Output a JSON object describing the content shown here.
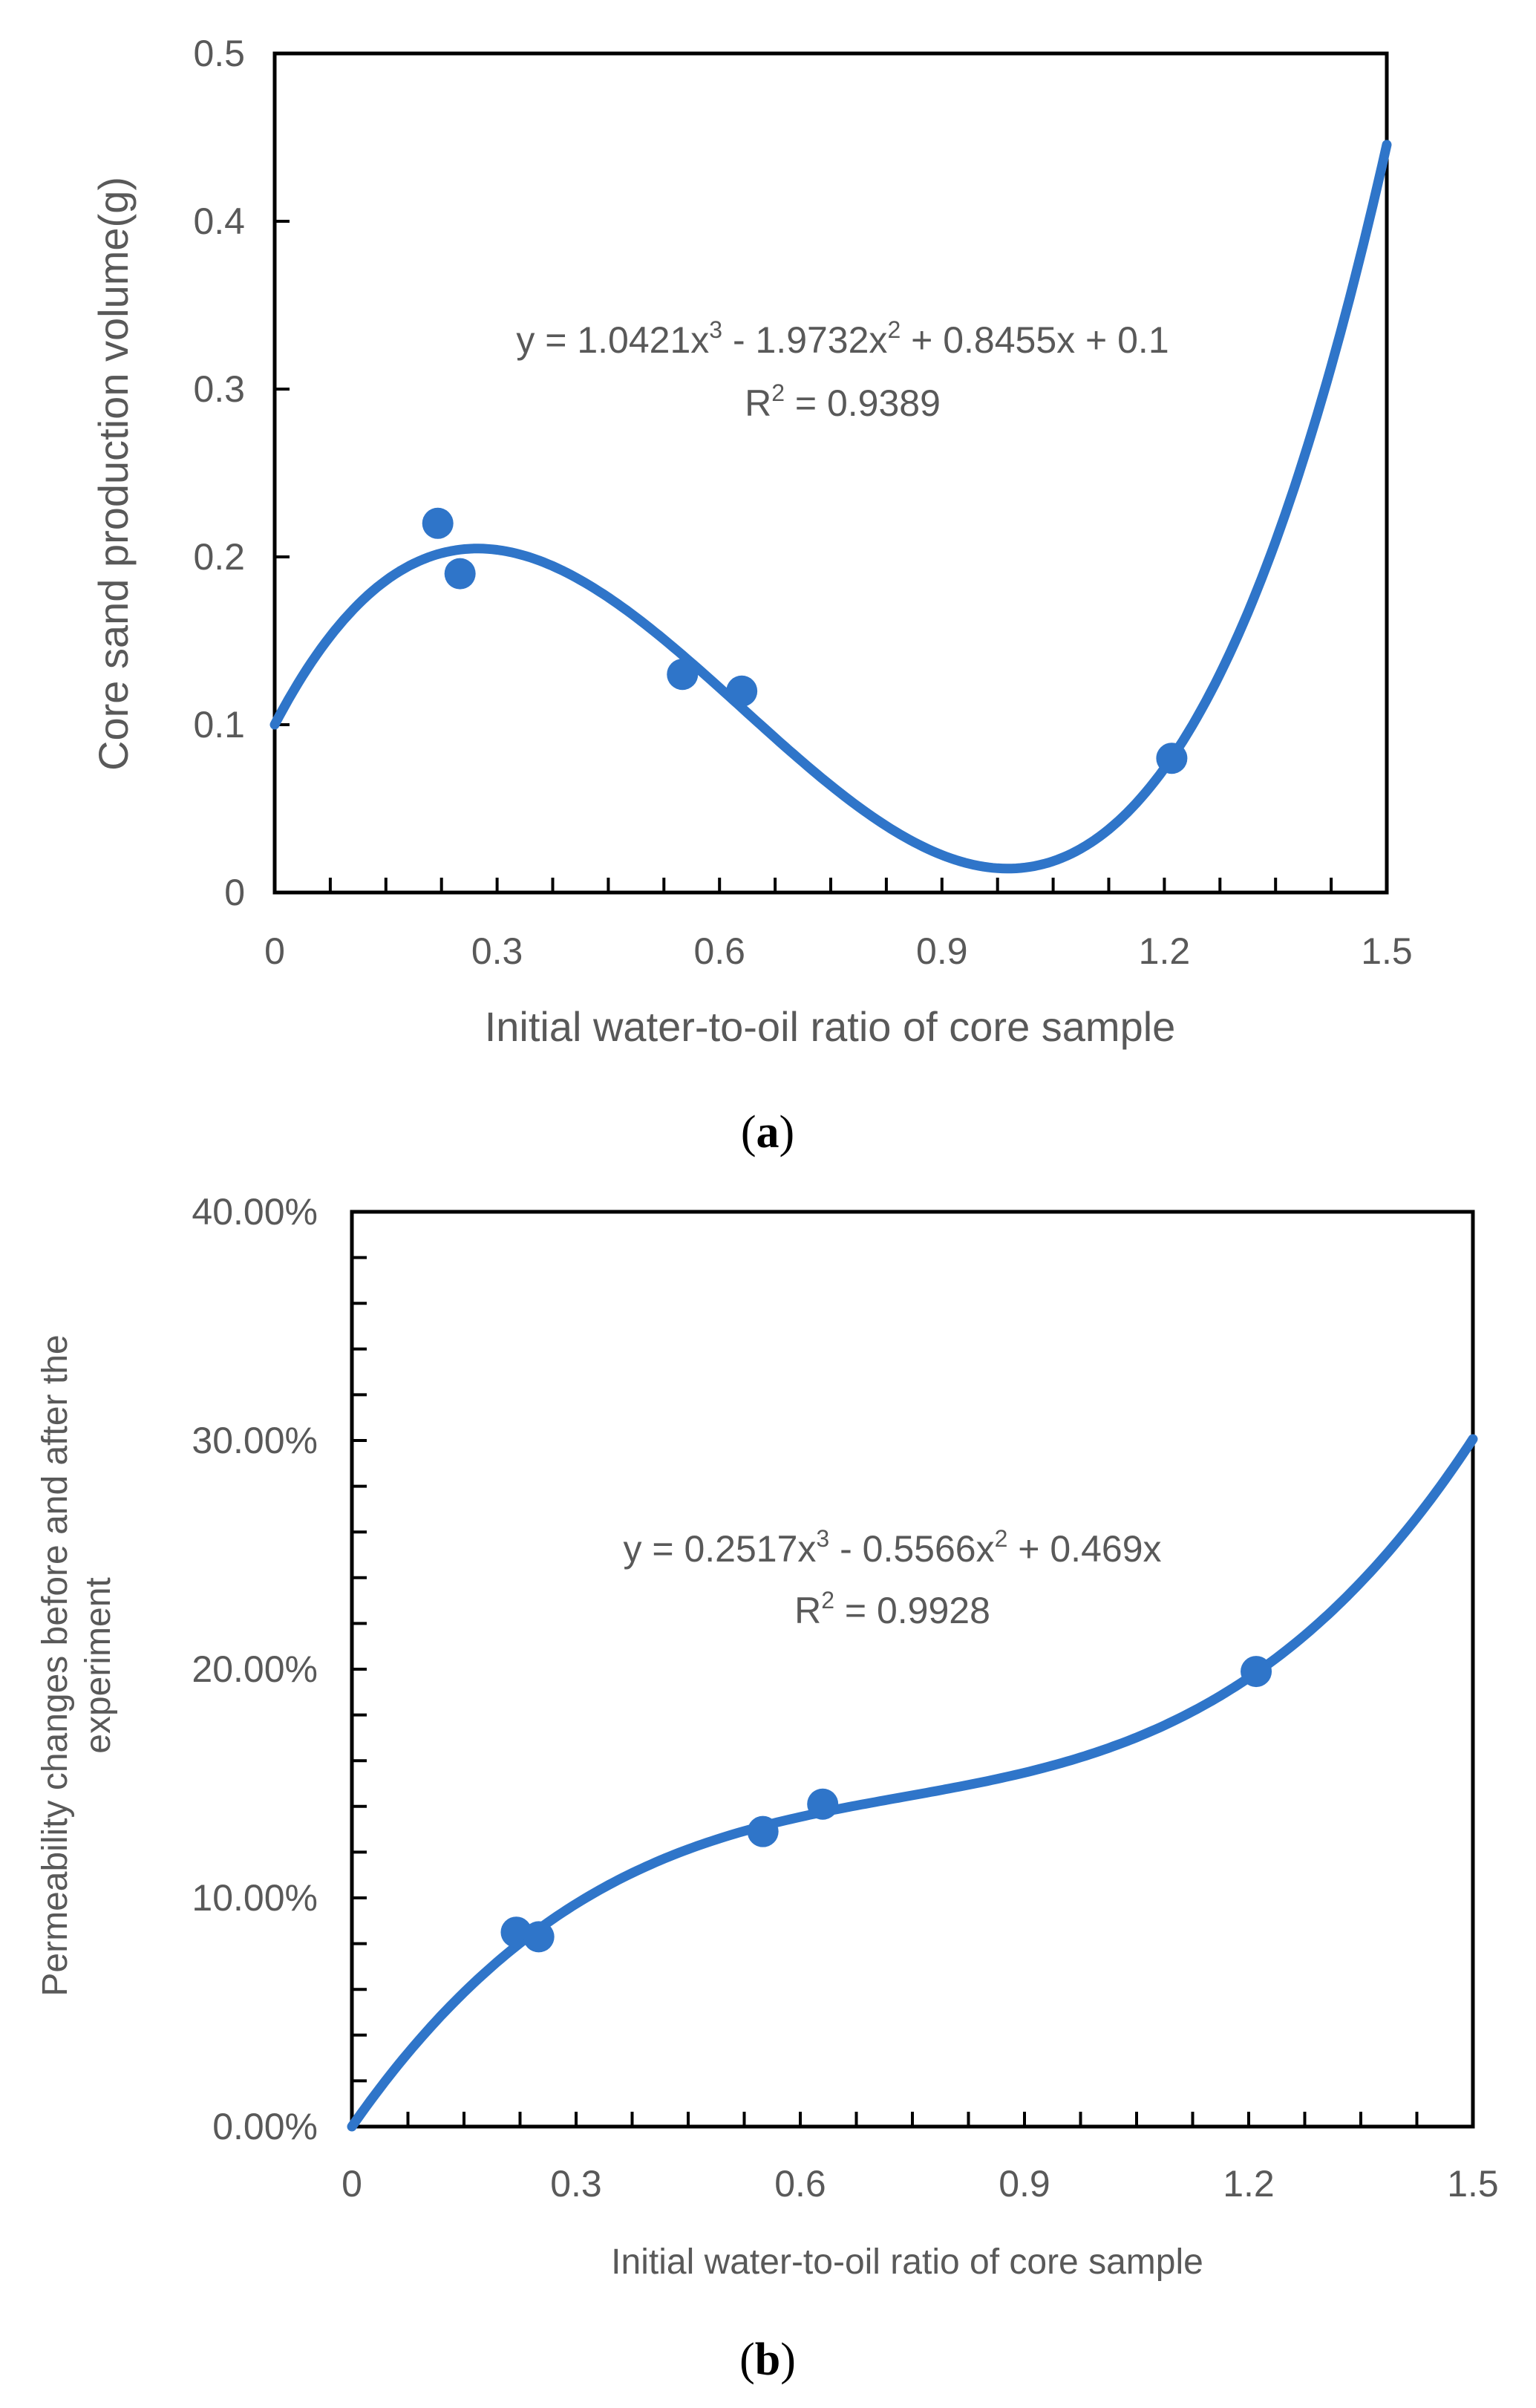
{
  "chart_data": [
    {
      "type": "scatter",
      "panel": "a",
      "panel_label": "a",
      "xlabel": "Initial water-to-oil ratio of core sample",
      "ylabel": "Core sand production volume(g)",
      "xlim": [
        0,
        1.5
      ],
      "ylim": [
        0,
        0.5
      ],
      "x_ticks": [
        0,
        0.3,
        0.6,
        0.9,
        1.2,
        1.5
      ],
      "x_tick_labels": [
        "0",
        "0.3",
        "0.6",
        "0.9",
        "1.2",
        "1.5"
      ],
      "y_ticks": [
        0,
        0.1,
        0.2,
        0.3,
        0.4,
        0.5
      ],
      "y_tick_labels": [
        "0",
        "0.1",
        "0.2",
        "0.3",
        "0.4",
        "0.5"
      ],
      "x_minor_step": 0.075,
      "y_minor_step": 0,
      "points": [
        {
          "x": 0.22,
          "y": 0.22
        },
        {
          "x": 0.25,
          "y": 0.19
        },
        {
          "x": 0.55,
          "y": 0.13
        },
        {
          "x": 0.63,
          "y": 0.12
        },
        {
          "x": 1.21,
          "y": 0.08
        }
      ],
      "trendline": {
        "type": "polynomial",
        "coefficients": [
          1.0421,
          -1.9732,
          0.8455,
          0.1
        ]
      },
      "equation": {
        "prefix": "y = 1.0421x",
        "p1": "3",
        "mid": " - 1.9732x",
        "p2": "2",
        "suffix": " + 0.8455x + 0.1"
      },
      "r2": {
        "r": "R",
        "p": "2",
        "rest": " = 0.9389"
      },
      "color": "#2f75c9"
    },
    {
      "type": "scatter",
      "panel": "b",
      "panel_label": "b",
      "xlabel": "Initial water-to-oil ratio of core sample",
      "ylabel_lines": [
        "Permeability changes before and after the",
        "experiment"
      ],
      "xlim": [
        0,
        1.5
      ],
      "ylim": [
        0,
        0.4
      ],
      "x_ticks": [
        0,
        0.3,
        0.6,
        0.9,
        1.2,
        1.5
      ],
      "x_tick_labels": [
        "0",
        "0.3",
        "0.6",
        "0.9",
        "1.2",
        "1.5"
      ],
      "y_ticks": [
        0,
        0.1,
        0.2,
        0.3,
        0.4
      ],
      "y_tick_labels": [
        "0.00%",
        "10.00%",
        "20.00%",
        "30.00%",
        "40.00%"
      ],
      "x_minor_step": 0.075,
      "y_minor_step": 0.02,
      "points": [
        {
          "x": 0.22,
          "y": 0.085
        },
        {
          "x": 0.25,
          "y": 0.083
        },
        {
          "x": 0.55,
          "y": 0.129
        },
        {
          "x": 0.63,
          "y": 0.141
        },
        {
          "x": 1.21,
          "y": 0.199
        }
      ],
      "trendline": {
        "type": "polynomial",
        "coefficients": [
          0.2517,
          -0.5566,
          0.469,
          0
        ]
      },
      "equation": {
        "prefix": "y = 0.2517x",
        "p1": "3",
        "mid": " - 0.5566x",
        "p2": "2",
        "suffix": " + 0.469x"
      },
      "r2": {
        "r": "R",
        "p": "2",
        "rest": " = 0.9928"
      },
      "color": "#2f75c9"
    }
  ]
}
